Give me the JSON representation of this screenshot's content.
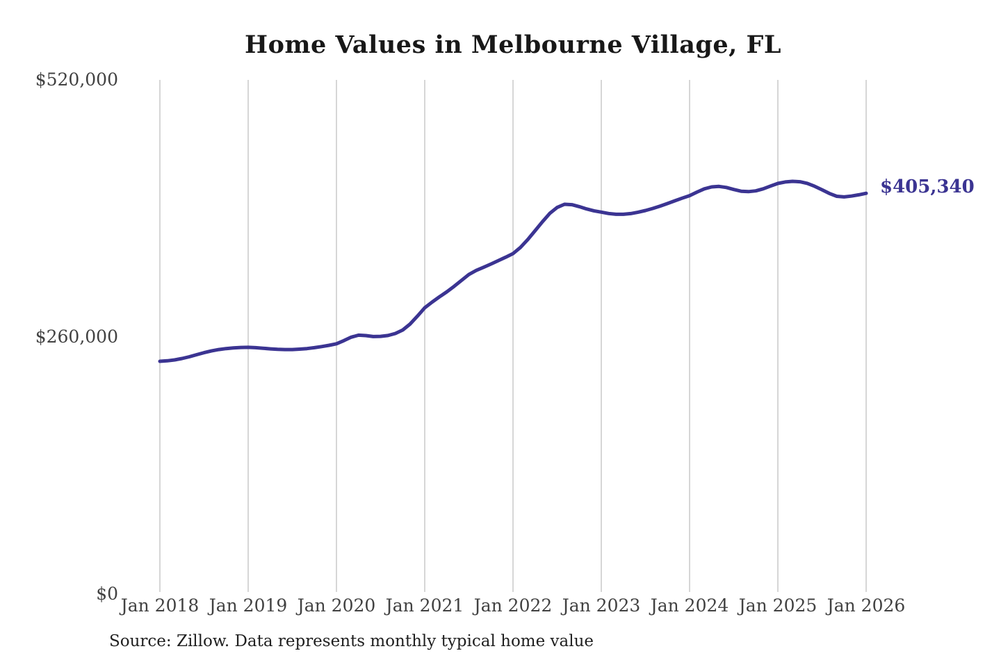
{
  "page": {
    "title": "Home Values in Melbourne Village, FL",
    "source_note": "Source: Zillow. Data represents monthly typical home value"
  },
  "end_label": "$405,340",
  "colors": {
    "background": "#ffffff",
    "line": "#3b3492",
    "grid": "#c9c9c9",
    "title_text": "#181818",
    "tick_text": "#414141",
    "source_text": "#1f1f1f",
    "end_label_text": "#3b3492"
  },
  "chart_data": {
    "type": "line",
    "title": "Home Values in Melbourne Village, FL",
    "xlabel": "",
    "ylabel": "",
    "ylim": [
      0,
      520000
    ],
    "grid": "vertical gridlines at each January only; no horizontal gridlines; no axis lines",
    "legend_position": "none",
    "line_width": 5,
    "y_ticks": [
      {
        "value": 0,
        "label": "$0"
      },
      {
        "value": 260000,
        "label": "$260,000"
      },
      {
        "value": 520000,
        "label": "$520,000"
      }
    ],
    "x_ticks": [
      {
        "month_index": 0,
        "label": "Jan 2018"
      },
      {
        "month_index": 12,
        "label": "Jan 2019"
      },
      {
        "month_index": 24,
        "label": "Jan 2020"
      },
      {
        "month_index": 36,
        "label": "Jan 2021"
      },
      {
        "month_index": 48,
        "label": "Jan 2022"
      },
      {
        "month_index": 60,
        "label": "Jan 2023"
      },
      {
        "month_index": 72,
        "label": "Jan 2024"
      },
      {
        "month_index": 84,
        "label": "Jan 2025"
      },
      {
        "month_index": 96,
        "label": "Jan 2026"
      }
    ],
    "series": [
      {
        "name": "Monthly typical home value",
        "color": "#3b3492",
        "end_value": 405340,
        "end_value_label": "$405,340",
        "x_months": [
          "2018-01",
          "2018-02",
          "2018-03",
          "2018-04",
          "2018-05",
          "2018-06",
          "2018-07",
          "2018-08",
          "2018-09",
          "2018-10",
          "2018-11",
          "2018-12",
          "2019-01",
          "2019-02",
          "2019-03",
          "2019-04",
          "2019-05",
          "2019-06",
          "2019-07",
          "2019-08",
          "2019-09",
          "2019-10",
          "2019-11",
          "2019-12",
          "2020-01",
          "2020-02",
          "2020-03",
          "2020-04",
          "2020-05",
          "2020-06",
          "2020-07",
          "2020-08",
          "2020-09",
          "2020-10",
          "2020-11",
          "2020-12",
          "2021-01",
          "2021-02",
          "2021-03",
          "2021-04",
          "2021-05",
          "2021-06",
          "2021-07",
          "2021-08",
          "2021-09",
          "2021-10",
          "2021-11",
          "2021-12",
          "2022-01",
          "2022-02",
          "2022-03",
          "2022-04",
          "2022-05",
          "2022-06",
          "2022-07",
          "2022-08",
          "2022-09",
          "2022-10",
          "2022-11",
          "2022-12",
          "2023-01",
          "2023-02",
          "2023-03",
          "2023-04",
          "2023-05",
          "2023-06",
          "2023-07",
          "2023-08",
          "2023-09",
          "2023-10",
          "2023-11",
          "2023-12",
          "2024-01",
          "2024-02",
          "2024-03",
          "2024-04",
          "2024-05",
          "2024-06",
          "2024-07",
          "2024-08",
          "2024-09",
          "2024-10",
          "2024-11",
          "2024-12",
          "2025-01",
          "2025-02",
          "2025-03",
          "2025-04",
          "2025-05",
          "2025-06",
          "2025-07",
          "2025-08",
          "2025-09",
          "2025-10",
          "2025-11",
          "2025-12",
          "2026-01"
        ],
        "values": [
          235400,
          235900,
          236800,
          238200,
          240000,
          242100,
          244100,
          245900,
          247300,
          248300,
          249000,
          249400,
          249500,
          249200,
          248600,
          248000,
          247500,
          247300,
          247300,
          247700,
          248300,
          249200,
          250300,
          251600,
          253100,
          256300,
          259800,
          261800,
          261400,
          260400,
          260600,
          261500,
          263500,
          267000,
          273000,
          281000,
          289500,
          295300,
          300600,
          305700,
          311200,
          317200,
          323200,
          327300,
          330500,
          333800,
          337200,
          340700,
          344300,
          350500,
          358500,
          367500,
          376500,
          385000,
          391000,
          394200,
          393800,
          391800,
          389500,
          387600,
          386300,
          384900,
          384100,
          384100,
          384800,
          386200,
          387900,
          390000,
          392400,
          395000,
          397700,
          400400,
          402900,
          406500,
          409800,
          411800,
          412300,
          411200,
          409200,
          407400,
          407000,
          407800,
          409800,
          412600,
          415300,
          416800,
          417400,
          417000,
          415400,
          412400,
          408900,
          405200,
          402300,
          401700,
          402500,
          403800,
          405340
        ]
      }
    ]
  }
}
